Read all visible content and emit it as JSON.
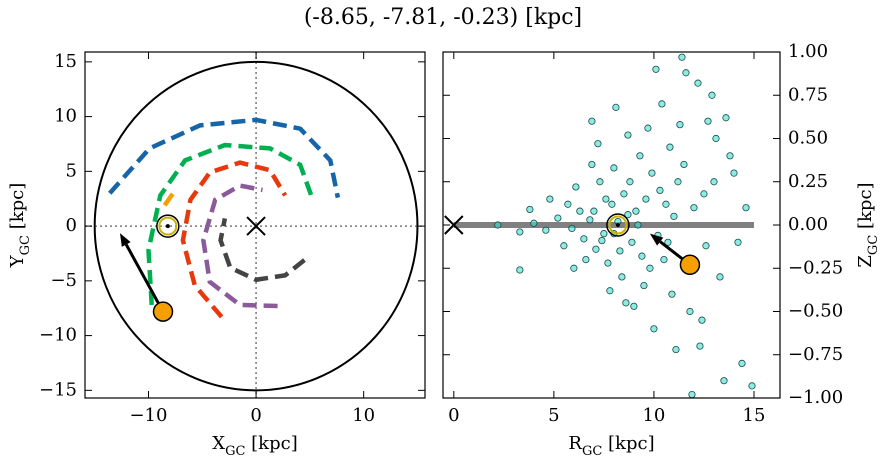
{
  "chart_data": [
    {
      "type": "line",
      "title": "(-8.65, -7.81, -0.23) [kpc]",
      "xlim": [
        -15.9,
        15.7
      ],
      "ylim": [
        -15.7,
        15.9
      ],
      "xticks": [
        {
          "value": -10,
          "label": "−10"
        },
        0,
        10
      ],
      "yticks": [
        {
          "value": -15,
          "label": "−15"
        },
        {
          "value": -10,
          "label": "−10"
        },
        {
          "value": -5,
          "label": "−5"
        },
        0,
        5,
        10,
        15
      ],
      "x_label": [
        "X",
        "GC",
        " [kpc]"
      ],
      "y_label": [
        "Y",
        "GC",
        " [kpc]"
      ],
      "boundary_radius": 15,
      "center": {
        "x": 0,
        "y": 0
      },
      "sun": {
        "x": -8.2,
        "y": 0
      },
      "object": {
        "x": -8.65,
        "y": -7.81,
        "color": "#f5a000"
      },
      "arrow": {
        "x": [
          -8.65,
          -12.65
        ],
        "y": [
          -7.81,
          -0.64
        ]
      },
      "series": [
        {
          "color": "#1565a8",
          "x": [
            -13.6,
            -9.9,
            -5.2,
            0,
            4.1,
            6.9,
            7.6
          ],
          "y": [
            3.0,
            7.1,
            9.2,
            9.7,
            8.9,
            6.0,
            2.6
          ]
        },
        {
          "color": "#00b050",
          "x": [
            -9.7,
            -10.0,
            -8.9,
            -6.6,
            -2.9,
            1.3,
            4.1,
            5.2
          ],
          "y": [
            -7.2,
            -2.2,
            2.8,
            6.0,
            7.4,
            7.1,
            5.6,
            2.6
          ]
        },
        {
          "color": "#f5a000",
          "x": [
            -8.5,
            -7.5
          ],
          "y": [
            1.9,
            3.3
          ]
        },
        {
          "color": "#e8380d",
          "x": [
            -3.2,
            -5.7,
            -6.8,
            -6.1,
            -4.3,
            -1.5,
            1.3,
            2.7
          ],
          "y": [
            -8.3,
            -5.4,
            -1.3,
            2.4,
            4.9,
            5.8,
            5.1,
            2.8
          ]
        },
        {
          "color": "#8b5a9a",
          "x": [
            2.0,
            -1.5,
            -4.3,
            -4.9,
            -3.8,
            -1.5,
            0.6
          ],
          "y": [
            -7.3,
            -7.2,
            -5.1,
            -1.3,
            2.4,
            3.7,
            3.3
          ]
        },
        {
          "color": "#444444",
          "x": [
            4.5,
            2.7,
            0,
            -2.4,
            -3.3,
            -2.9
          ],
          "y": [
            -3.1,
            -4.5,
            -4.9,
            -3.8,
            -1.3,
            0.7
          ]
        }
      ]
    },
    {
      "type": "scatter",
      "xlim": [
        -0.54,
        16.3
      ],
      "ylim": [
        -1,
        1
      ],
      "xticks": [
        0,
        5,
        10,
        15
      ],
      "yticks": [
        {
          "value": -1,
          "label": "−1.00"
        },
        {
          "value": -0.75,
          "label": "−0.75"
        },
        {
          "value": -0.5,
          "label": "−0.50"
        },
        {
          "value": -0.25,
          "label": "−0.25"
        },
        {
          "value": 0,
          "label": "0.00"
        },
        {
          "value": 0.25,
          "label": "0.25"
        },
        {
          "value": 0.5,
          "label": "0.50"
        },
        {
          "value": 0.75,
          "label": "0.75"
        },
        {
          "value": 1,
          "label": "1.00"
        }
      ],
      "y_axis_side": "right",
      "x_label": [
        "R",
        "GC",
        " [kpc]"
      ],
      "y_label": [
        "Z",
        "GC",
        " [kpc]"
      ],
      "plane": {
        "x": [
          0,
          15
        ],
        "y": [
          0,
          0
        ],
        "color": "#808080"
      },
      "center": {
        "x": 0,
        "y": 0
      },
      "sun": {
        "x": 8.2,
        "y": 0
      },
      "object": {
        "x": 11.8,
        "y": -0.23,
        "color": "#f5a000"
      },
      "arrow": {
        "x": [
          11.8,
          9.8
        ],
        "y": [
          -0.23,
          -0.05
        ]
      },
      "color": "#40e0d0",
      "x": [
        8.2,
        7.5,
        9.1,
        6.8,
        8.9,
        7.9,
        10.2,
        5.9,
        8.5,
        7.1,
        9.6,
        6.3,
        11.0,
        10.5,
        7.7,
        8.8,
        9.9,
        5.2,
        4.6,
        4.0,
        3.3,
        2.2,
        3.8,
        12.0,
        12.6,
        11.5,
        10.8,
        9.3,
        8.0,
        7.3,
        6.6,
        8.4,
        9.5,
        10.9,
        11.8,
        12.4,
        13.1,
        13.6,
        12.9,
        11.6,
        12.2,
        10.4,
        9.7,
        8.7,
        12.3,
        13.5,
        14.4,
        11.9,
        14.9,
        7.2,
        6.1,
        6.0,
        5.5,
        4.8,
        9.0,
        10.0,
        11.1,
        13.0,
        14.2,
        13.8,
        12.7,
        11.3,
        10.1,
        11.4,
        10.6,
        9.4,
        7.8,
        8.6,
        3.3,
        6.9,
        8.1,
        9.8,
        7.0,
        7.6,
        8.3,
        9.2,
        8.0,
        8.7,
        7.4,
        10.3,
        11.7,
        12.5,
        13.3,
        14.0,
        14.6,
        5.7,
        6.5,
        6.9,
        10.7,
        11.2
      ],
      "y": [
        0.02,
        -0.05,
        0.08,
        0.03,
        -0.1,
        0.12,
        -0.06,
        -0.02,
        0.18,
        -0.14,
        0.15,
        0.08,
        0.05,
        -0.2,
        -0.22,
        0.25,
        0.3,
        0.04,
        -0.03,
        0.01,
        -0.04,
        0.0,
        0.09,
        0.1,
        -0.12,
        0.35,
        0.45,
        0.4,
        0.33,
        0.25,
        -0.2,
        -0.3,
        -0.35,
        -0.4,
        -0.5,
        -0.55,
        0.5,
        0.62,
        0.75,
        0.88,
        0.82,
        0.7,
        0.56,
        0.52,
        -0.7,
        -0.9,
        -0.8,
        -0.98,
        -0.93,
        0.47,
        0.22,
        -0.25,
        -0.12,
        0.15,
        -0.47,
        -0.6,
        -0.72,
        0.25,
        -0.1,
        0.4,
        0.6,
        0.58,
        0.9,
        0.97,
        0.12,
        -0.18,
        -0.38,
        -0.45,
        -0.26,
        0.6,
        0.68,
        -0.25,
        0.08,
        0.15,
        -0.15,
        0.0,
        -0.05,
        0.06,
        -0.09,
        0.2,
        -0.25,
        0.18,
        -0.3,
        0.3,
        0.1,
        0.12,
        -0.08,
        0.35,
        -0.1,
        0.25
      ]
    }
  ]
}
